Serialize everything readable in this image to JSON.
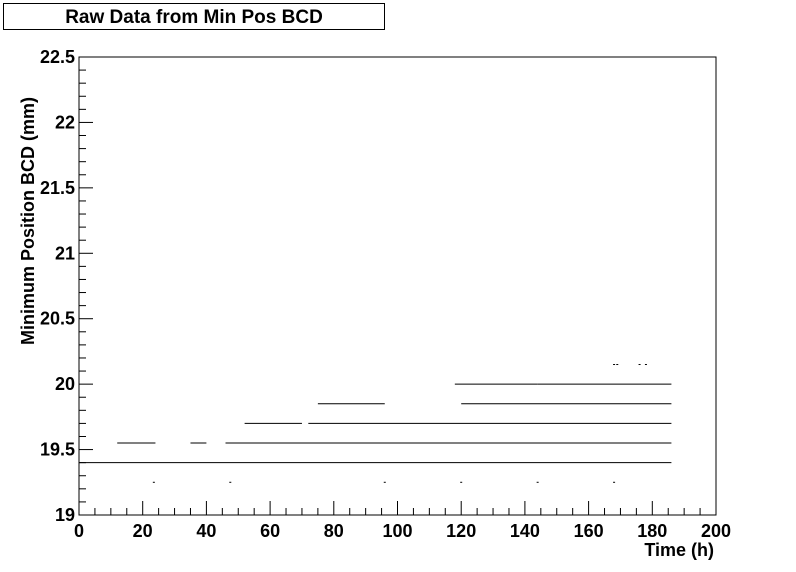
{
  "chart_data": {
    "type": "scatter",
    "title": "Raw Data from Min Pos BCD",
    "xlabel": "Time (h)",
    "ylabel": "Minimum Position BCD (mm)",
    "xlim": [
      0,
      200
    ],
    "ylim": [
      19,
      22.5
    ],
    "x_major_ticks": [
      0,
      20,
      40,
      60,
      80,
      100,
      120,
      140,
      160,
      180,
      200
    ],
    "y_major_ticks": [
      19,
      19.5,
      20,
      20.5,
      21,
      21.5,
      22,
      22.5
    ],
    "y_tick_labels": [
      "19",
      "19.5",
      "20",
      "20.5",
      "21",
      "21.5",
      "22",
      "22.5"
    ],
    "grid": false,
    "legend": "none",
    "marker_color": "#000000",
    "series": [
      {
        "level": 19.25,
        "points": [
          23.5,
          47.5,
          96,
          120,
          144,
          168
        ]
      },
      {
        "level": 19.4,
        "segments": [
          [
            0,
            186
          ]
        ]
      },
      {
        "level": 19.55,
        "segments": [
          [
            12,
            24
          ],
          [
            35,
            40
          ],
          [
            46,
            186
          ]
        ]
      },
      {
        "level": 19.7,
        "segments": [
          [
            52,
            70
          ],
          [
            72,
            186
          ]
        ]
      },
      {
        "level": 19.85,
        "segments": [
          [
            75,
            96
          ],
          [
            120,
            186
          ]
        ]
      },
      {
        "level": 20.0,
        "segments": [
          [
            118,
            144
          ],
          [
            144,
            186
          ]
        ]
      },
      {
        "level": 20.15,
        "points": [
          168,
          169,
          176,
          178
        ]
      }
    ]
  }
}
